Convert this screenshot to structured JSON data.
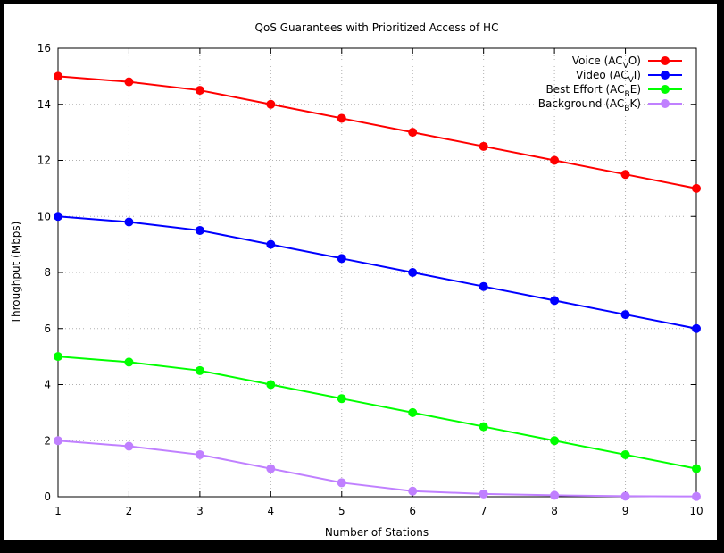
{
  "chart_data": {
    "type": "line",
    "title": "QoS Guarantees with Prioritized Access of HC",
    "xlabel": "Number of Stations",
    "ylabel": "Throughput (Mbps)",
    "x": [
      1,
      2,
      3,
      4,
      5,
      6,
      7,
      8,
      9,
      10
    ],
    "xlim": [
      1,
      10
    ],
    "ylim": [
      0,
      16
    ],
    "xticks": [
      1,
      2,
      3,
      4,
      5,
      6,
      7,
      8,
      9,
      10
    ],
    "yticks": [
      0,
      2,
      4,
      6,
      8,
      10,
      12,
      14,
      16
    ],
    "grid": true,
    "legend_position": "top-right",
    "series": [
      {
        "name": "Voice (AC_VO)",
        "legend_main": "Voice (AC",
        "legend_sub": "V",
        "legend_tail": "O)",
        "color": "#ff0000",
        "values": [
          15.0,
          14.8,
          14.5,
          14.0,
          13.5,
          13.0,
          12.5,
          12.0,
          11.5,
          11.0
        ]
      },
      {
        "name": "Video (AC_VI)",
        "legend_main": "Video (AC",
        "legend_sub": "V",
        "legend_tail": "I)",
        "color": "#0000ff",
        "values": [
          10.0,
          9.8,
          9.5,
          9.0,
          8.5,
          8.0,
          7.5,
          7.0,
          6.5,
          6.0
        ]
      },
      {
        "name": "Best Effort (AC_BE)",
        "legend_main": "Best Effort (AC",
        "legend_sub": "B",
        "legend_tail": "E)",
        "color": "#00ff00",
        "values": [
          5.0,
          4.8,
          4.5,
          4.0,
          3.5,
          3.0,
          2.5,
          2.0,
          1.5,
          1.0
        ]
      },
      {
        "name": "Background (AC_BK)",
        "legend_main": "Background (AC",
        "legend_sub": "B",
        "legend_tail": "K)",
        "color": "#c080ff",
        "values": [
          2.0,
          1.8,
          1.5,
          1.0,
          0.5,
          0.2,
          0.1,
          0.05,
          0.02,
          0.01
        ]
      }
    ]
  }
}
